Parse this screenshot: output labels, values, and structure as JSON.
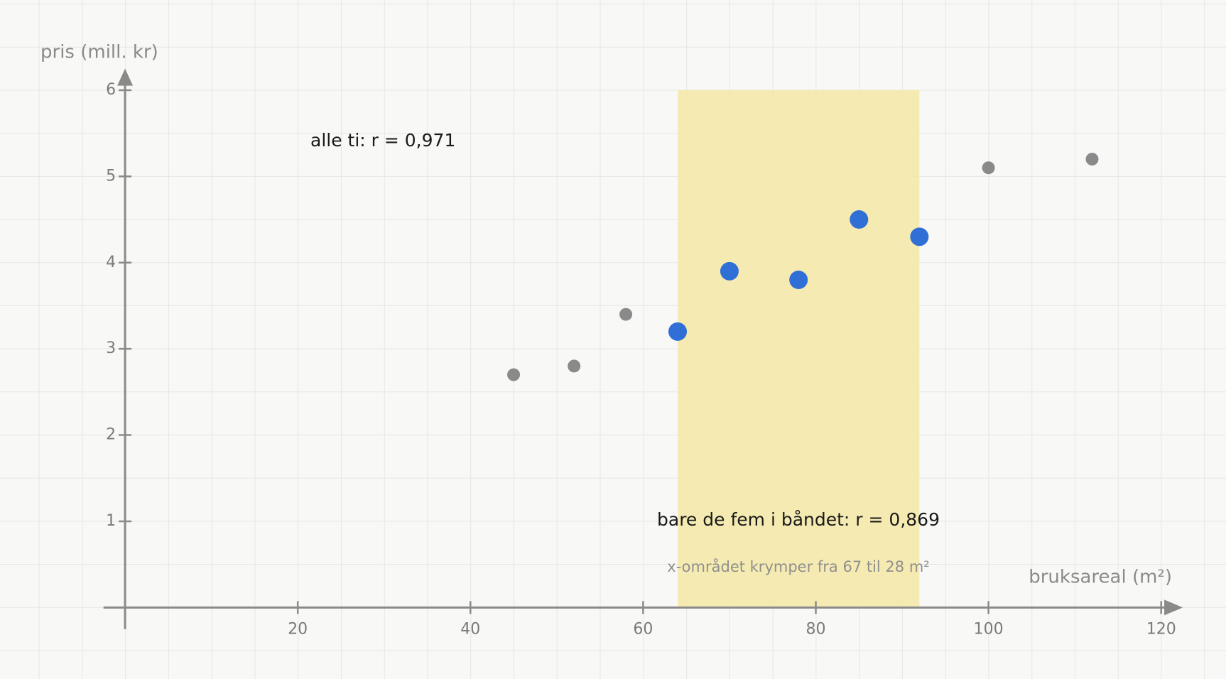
{
  "chart_data": {
    "type": "scatter",
    "ylabel": "pris (mill. kr)",
    "xlabel": "bruksareal (m²)",
    "annotations": [
      "alle ti: r = 0,971",
      "bare de fem i båndet: r = 0,869",
      "x-området krymper fra 67 til 28 m²"
    ],
    "band": {
      "x": [
        64,
        92
      ],
      "color": "#f5e9a6"
    },
    "series": [
      {
        "color": "#8a8a8a",
        "x": [
          45,
          52,
          58,
          100,
          112
        ],
        "values": [
          2.7,
          2.8,
          3.4,
          5.1,
          5.2
        ]
      },
      {
        "color": "#2f6fd6",
        "x": [
          64,
          70,
          78,
          85,
          92
        ],
        "values": [
          3.2,
          3.9,
          3.8,
          4.5,
          4.3
        ]
      }
    ],
    "xlim": [
      -2.5,
      122.5
    ],
    "ylim": [
      -0.25,
      6.25
    ],
    "xticks": [
      20,
      40,
      60,
      80,
      100,
      120
    ],
    "yticks": [
      1,
      2,
      3,
      4,
      5,
      6
    ]
  }
}
